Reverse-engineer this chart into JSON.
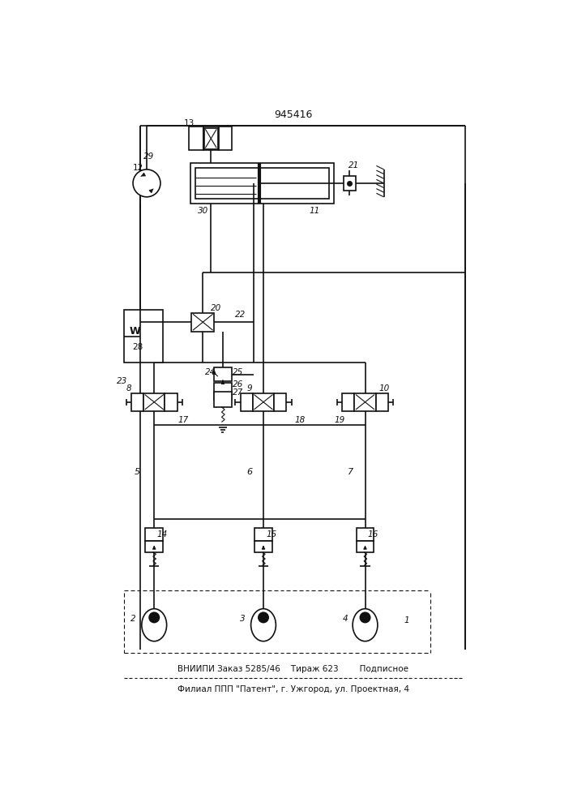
{
  "title": "945416",
  "footer_line1": "ВНИИПИ Заказ 5285/46    Тираж 623        Подписное",
  "footer_line2": "Филиал ПП \"Патент\", г. Ужгород, ул. Проектная, 4",
  "bg_color": "#ffffff",
  "lc": "#111111",
  "lw": 1.2,
  "lw_thin": 0.8,
  "lw_thick": 2.0
}
